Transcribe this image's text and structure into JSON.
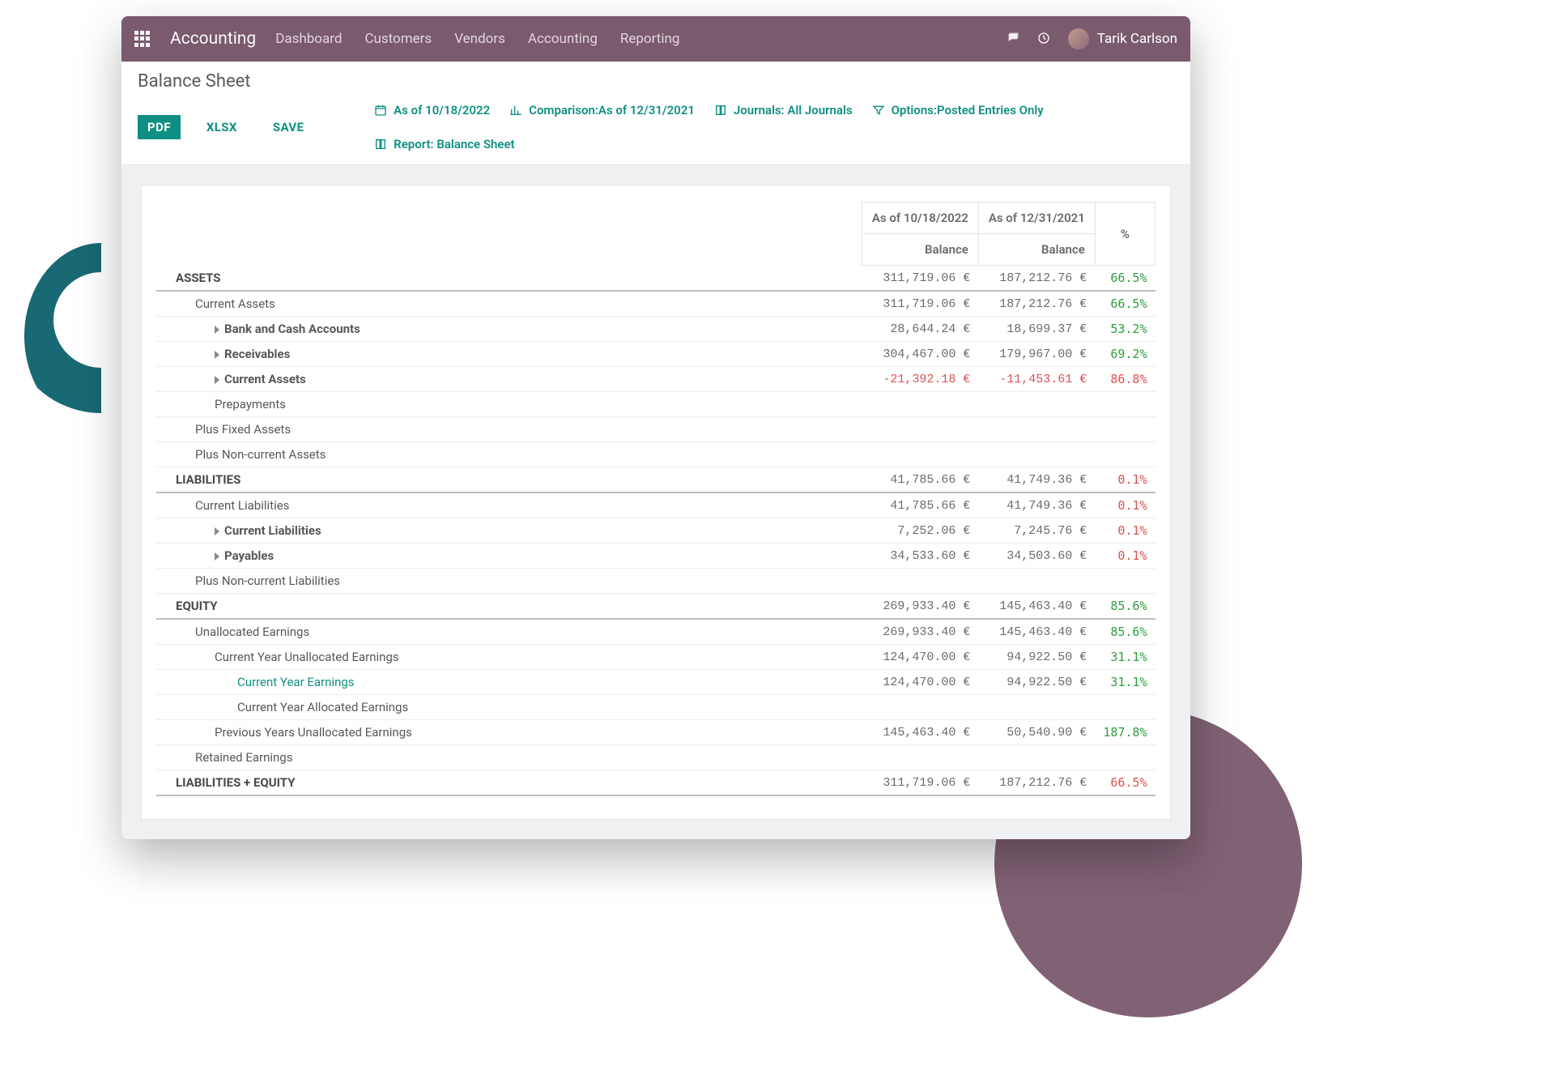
{
  "colors": {
    "titlebar_bg": "#7a5a6d",
    "primary": "#0f8f83",
    "text": "#4c4c4c",
    "positive": "#2e9e3f",
    "negative": "#d9534f",
    "sheet_bg": "#f0f1f3",
    "border": "#e6e6e6",
    "strong_border": "#bfbfbf",
    "blob_teal": "#186973",
    "blob_plum": "#7a5a6d"
  },
  "titlebar": {
    "brand": "Accounting",
    "nav": [
      "Dashboard",
      "Customers",
      "Vendors",
      "Accounting",
      "Reporting"
    ],
    "user_name": "Tarik Carlson"
  },
  "page_title": "Balance Sheet",
  "toolbar": {
    "buttons": {
      "pdf": "PDF",
      "xlsx": "XLSX",
      "save": "SAVE"
    },
    "filters": {
      "as_of": "As of 10/18/2022",
      "comparison": "Comparison:As of 12/31/2021",
      "journals": "Journals: All Journals",
      "options": "Options:Posted Entries Only",
      "report": "Report: Balance Sheet"
    }
  },
  "report": {
    "columns": {
      "c1_top": "As of 10/18/2022",
      "c2_top": "As of 12/31/2021",
      "c3_top": "%",
      "sub": "Balance"
    },
    "rows": [
      {
        "label": "ASSETS",
        "v1": "311,719.06 €",
        "v2": "187,212.76 €",
        "pct": "66.5%",
        "pct_class": "green",
        "indent": 0,
        "style": "strong"
      },
      {
        "label": "Current Assets",
        "v1": "311,719.06 €",
        "v2": "187,212.76 €",
        "pct": "66.5%",
        "pct_class": "green",
        "indent": 1
      },
      {
        "label": "Bank and Cash Accounts",
        "v1": "28,644.24 €",
        "v2": "18,699.37 €",
        "pct": "53.2%",
        "pct_class": "green",
        "indent": 2,
        "caret": true,
        "bold": true
      },
      {
        "label": "Receivables",
        "v1": "304,467.00 €",
        "v2": "179,967.00 €",
        "pct": "69.2%",
        "pct_class": "green",
        "indent": 2,
        "caret": true,
        "bold": true
      },
      {
        "label": "Current Assets",
        "v1": "-21,392.18 €",
        "v1_neg": true,
        "v2": "-11,453.61 €",
        "v2_neg": true,
        "pct": "86.8%",
        "pct_class": "red",
        "indent": 2,
        "caret": true,
        "bold": true
      },
      {
        "label": "Prepayments",
        "indent": 2
      },
      {
        "label": "Plus Fixed Assets",
        "indent": 1
      },
      {
        "label": "Plus Non-current Assets",
        "indent": 1
      },
      {
        "label": "LIABILITIES",
        "v1": "41,785.66 €",
        "v2": "41,749.36 €",
        "pct": "0.1%",
        "pct_class": "red",
        "indent": 0,
        "style": "strong"
      },
      {
        "label": "Current Liabilities",
        "v1": "41,785.66 €",
        "v2": "41,749.36 €",
        "pct": "0.1%",
        "pct_class": "red",
        "indent": 1
      },
      {
        "label": "Current Liabilities",
        "v1": "7,252.06 €",
        "v2": "7,245.76 €",
        "pct": "0.1%",
        "pct_class": "red",
        "indent": 2,
        "caret": true,
        "bold": true
      },
      {
        "label": "Payables",
        "v1": "34,533.60 €",
        "v2": "34,503.60 €",
        "pct": "0.1%",
        "pct_class": "red",
        "indent": 2,
        "caret": true,
        "bold": true
      },
      {
        "label": "Plus Non-current Liabilities",
        "indent": 1
      },
      {
        "label": "EQUITY",
        "v1": "269,933.40 €",
        "v2": "145,463.40 €",
        "pct": "85.6%",
        "pct_class": "green",
        "indent": 0,
        "style": "strong"
      },
      {
        "label": "Unallocated Earnings",
        "v1": "269,933.40 €",
        "v2": "145,463.40 €",
        "pct": "85.6%",
        "pct_class": "green",
        "indent": 1
      },
      {
        "label": "Current Year Unallocated Earnings",
        "v1": "124,470.00 €",
        "v2": "94,922.50 €",
        "pct": "31.1%",
        "pct_class": "green",
        "indent": 2
      },
      {
        "label": "Current Year Earnings",
        "v1": "124,470.00 €",
        "v2": "94,922.50 €",
        "pct": "31.1%",
        "pct_class": "green",
        "indent": 3,
        "link": true
      },
      {
        "label": "Current Year Allocated Earnings",
        "indent": 3
      },
      {
        "label": "Previous Years Unallocated Earnings",
        "v1": "145,463.40 €",
        "v2": "50,540.90 €",
        "pct": "187.8%",
        "pct_class": "green",
        "indent": 2
      },
      {
        "label": "Retained Earnings",
        "indent": 1
      },
      {
        "label": "LIABILITIES + EQUITY",
        "v1": "311,719.06 €",
        "v2": "187,212.76 €",
        "pct": "66.5%",
        "pct_class": "red",
        "indent": 0,
        "style": "strong"
      }
    ]
  }
}
